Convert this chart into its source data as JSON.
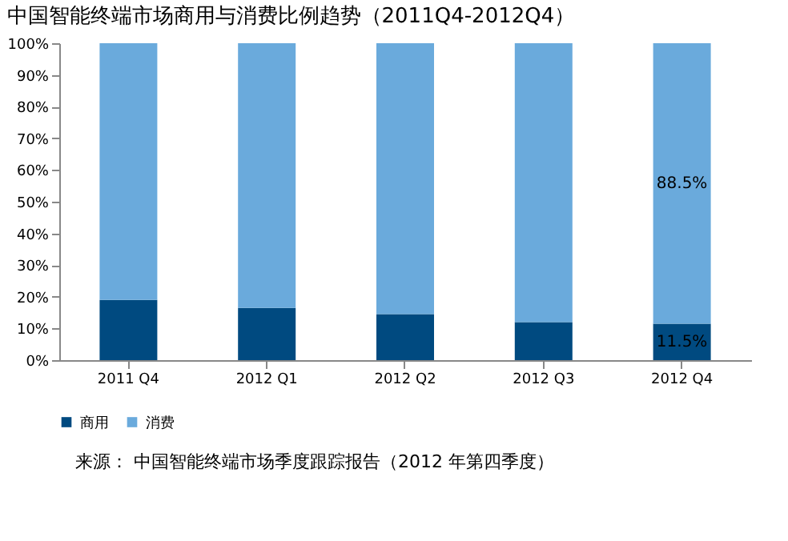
{
  "chart_data": {
    "type": "bar",
    "stacked": true,
    "title": "中国智能终端市场商用与消费比例趋势（2011Q4-2012Q4）",
    "categories": [
      "2011 Q4",
      "2012 Q1",
      "2012 Q2",
      "2012 Q3",
      "2012 Q4"
    ],
    "series": [
      {
        "name": "商用",
        "color": "#004a80",
        "values": [
          19.0,
          16.5,
          14.5,
          12.0,
          11.5
        ],
        "value_labels": [
          null,
          null,
          null,
          null,
          "11.5%"
        ]
      },
      {
        "name": "消费",
        "color": "#6aaadc",
        "values": [
          81.0,
          83.5,
          85.5,
          88.0,
          88.5
        ],
        "value_labels": [
          null,
          null,
          null,
          null,
          "88.5%"
        ]
      }
    ],
    "ylim": [
      0,
      100
    ],
    "yticks": [
      {
        "value": 0,
        "label": "0%"
      },
      {
        "value": 10,
        "label": "10%"
      },
      {
        "value": 20,
        "label": "20%"
      },
      {
        "value": 30,
        "label": "30%"
      },
      {
        "value": 40,
        "label": "40%"
      },
      {
        "value": 50,
        "label": "50%"
      },
      {
        "value": 60,
        "label": "60%"
      },
      {
        "value": 70,
        "label": "70%"
      },
      {
        "value": 80,
        "label": "80%"
      },
      {
        "value": 90,
        "label": "90%"
      },
      {
        "value": 100,
        "label": "100%"
      }
    ],
    "grid": false,
    "legend": "bottom",
    "annotations": [
      "来源： 中国智能终端市场季度跟踪报告（2012 年第四季度）"
    ]
  }
}
